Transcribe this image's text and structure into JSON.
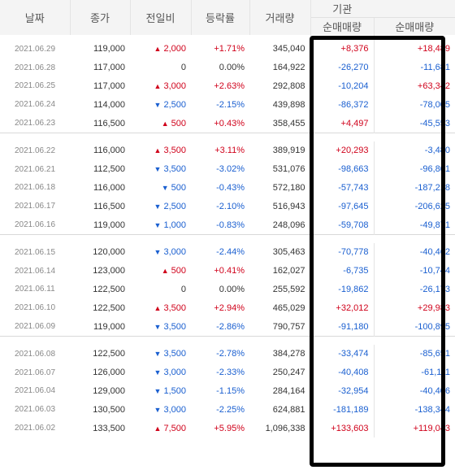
{
  "headers": {
    "date": "날짜",
    "close": "종가",
    "change": "전일비",
    "rate": "등락률",
    "volume": "거래량",
    "institution": "기관",
    "inst_net": "순매매량",
    "foreign_net": "순매매량"
  },
  "groups": [
    [
      {
        "date": "2021.06.29",
        "close": "119,000",
        "dir": "up",
        "chg": "2,000",
        "rate": "+1.71%",
        "vol": "345,040",
        "inst": "+8,376",
        "frgn": "+18,489"
      },
      {
        "date": "2021.06.28",
        "close": "117,000",
        "dir": "none",
        "chg": "0",
        "rate": "0.00%",
        "vol": "164,922",
        "inst": "-26,270",
        "frgn": "-11,681"
      },
      {
        "date": "2021.06.25",
        "close": "117,000",
        "dir": "up",
        "chg": "3,000",
        "rate": "+2.63%",
        "vol": "292,808",
        "inst": "-10,204",
        "frgn": "+63,342"
      },
      {
        "date": "2021.06.24",
        "close": "114,000",
        "dir": "down",
        "chg": "2,500",
        "rate": "-2.15%",
        "vol": "439,898",
        "inst": "-86,372",
        "frgn": "-78,005"
      },
      {
        "date": "2021.06.23",
        "close": "116,500",
        "dir": "up",
        "chg": "500",
        "rate": "+0.43%",
        "vol": "358,455",
        "inst": "+4,497",
        "frgn": "-45,553"
      }
    ],
    [
      {
        "date": "2021.06.22",
        "close": "116,000",
        "dir": "up",
        "chg": "3,500",
        "rate": "+3.11%",
        "vol": "389,919",
        "inst": "+20,293",
        "frgn": "-3,480"
      },
      {
        "date": "2021.06.21",
        "close": "112,500",
        "dir": "down",
        "chg": "3,500",
        "rate": "-3.02%",
        "vol": "531,076",
        "inst": "-98,663",
        "frgn": "-96,801"
      },
      {
        "date": "2021.06.18",
        "close": "116,000",
        "dir": "down",
        "chg": "500",
        "rate": "-0.43%",
        "vol": "572,180",
        "inst": "-57,743",
        "frgn": "-187,218"
      },
      {
        "date": "2021.06.17",
        "close": "116,500",
        "dir": "down",
        "chg": "2,500",
        "rate": "-2.10%",
        "vol": "516,943",
        "inst": "-97,645",
        "frgn": "-206,625"
      },
      {
        "date": "2021.06.16",
        "close": "119,000",
        "dir": "down",
        "chg": "1,000",
        "rate": "-0.83%",
        "vol": "248,096",
        "inst": "-59,708",
        "frgn": "-49,871"
      }
    ],
    [
      {
        "date": "2021.06.15",
        "close": "120,000",
        "dir": "down",
        "chg": "3,000",
        "rate": "-2.44%",
        "vol": "305,463",
        "inst": "-70,778",
        "frgn": "-40,462"
      },
      {
        "date": "2021.06.14",
        "close": "123,000",
        "dir": "up",
        "chg": "500",
        "rate": "+0.41%",
        "vol": "162,027",
        "inst": "-6,735",
        "frgn": "-10,744"
      },
      {
        "date": "2021.06.11",
        "close": "122,500",
        "dir": "none",
        "chg": "0",
        "rate": "0.00%",
        "vol": "255,592",
        "inst": "-19,862",
        "frgn": "-26,173"
      },
      {
        "date": "2021.06.10",
        "close": "122,500",
        "dir": "up",
        "chg": "3,500",
        "rate": "+2.94%",
        "vol": "465,029",
        "inst": "+32,012",
        "frgn": "+29,983"
      },
      {
        "date": "2021.06.09",
        "close": "119,000",
        "dir": "down",
        "chg": "3,500",
        "rate": "-2.86%",
        "vol": "790,757",
        "inst": "-91,180",
        "frgn": "-100,895"
      }
    ],
    [
      {
        "date": "2021.06.08",
        "close": "122,500",
        "dir": "down",
        "chg": "3,500",
        "rate": "-2.78%",
        "vol": "384,278",
        "inst": "-33,474",
        "frgn": "-85,651"
      },
      {
        "date": "2021.06.07",
        "close": "126,000",
        "dir": "down",
        "chg": "3,000",
        "rate": "-2.33%",
        "vol": "250,247",
        "inst": "-40,408",
        "frgn": "-61,111"
      },
      {
        "date": "2021.06.04",
        "close": "129,000",
        "dir": "down",
        "chg": "1,500",
        "rate": "-1.15%",
        "vol": "284,164",
        "inst": "-32,954",
        "frgn": "-40,406"
      },
      {
        "date": "2021.06.03",
        "close": "130,500",
        "dir": "down",
        "chg": "3,000",
        "rate": "-2.25%",
        "vol": "624,881",
        "inst": "-181,189",
        "frgn": "-138,344"
      },
      {
        "date": "2021.06.02",
        "close": "133,500",
        "dir": "up",
        "chg": "7,500",
        "rate": "+5.95%",
        "vol": "1,096,338",
        "inst": "+133,603",
        "frgn": "+119,043"
      }
    ]
  ],
  "colors": {
    "up": "#d0021b",
    "down": "#1a5fd0",
    "header_bg": "#f4f4f4",
    "highlight_border": "#000000"
  },
  "icons": {
    "up": "▲",
    "down": "▼"
  }
}
